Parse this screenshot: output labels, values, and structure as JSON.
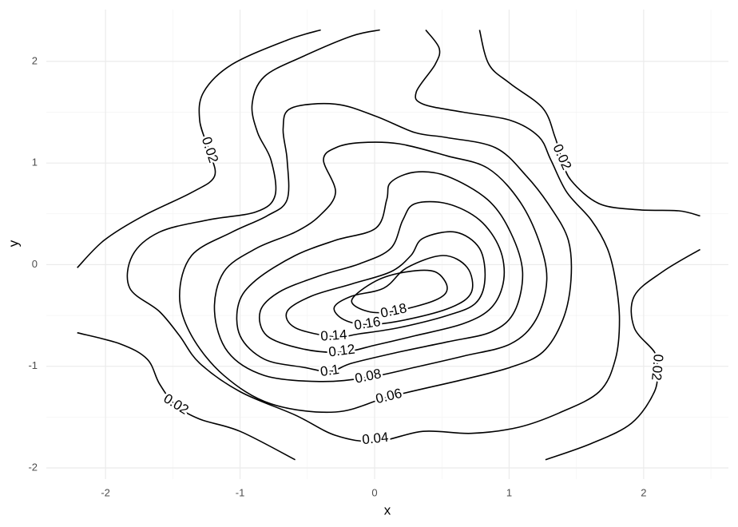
{
  "chart_data": {
    "type": "contour",
    "xlabel": "x",
    "ylabel": "y",
    "xlim": [
      -2.44,
      2.63
    ],
    "ylim": [
      -2.11,
      2.51
    ],
    "xticks": [
      -2,
      -1,
      0,
      1,
      2
    ],
    "yticks": [
      -2,
      -1,
      0,
      1,
      2
    ],
    "xminor": [
      -1.5,
      -0.5,
      0.5,
      1.5,
      2.5
    ],
    "yminor": [
      -1.5,
      -0.5,
      0.5,
      1.5
    ],
    "grid": true,
    "color": "#000000",
    "contours": [
      {
        "level": 0.02,
        "lines": [
          {
            "closed": false,
            "x": [
              -0.4,
              -0.65,
              -1.06,
              -1.27,
              -1.3,
              -1.23,
              -1.19,
              -1.36,
              -1.72,
              -2.01,
              -2.21
            ],
            "y": [
              2.31,
              2.21,
              1.97,
              1.7,
              1.42,
              1.12,
              0.87,
              0.71,
              0.48,
              0.24,
              -0.03
            ]
          },
          {
            "closed": false,
            "x": [
              -2.21,
              -1.89,
              -1.69,
              -1.6,
              -1.48,
              -1.3,
              -1.0,
              -0.59
            ],
            "y": [
              -0.67,
              -0.78,
              -0.93,
              -1.17,
              -1.38,
              -1.52,
              -1.64,
              -1.92
            ]
          },
          {
            "closed": false,
            "x": [
              0.78,
              0.85,
              1.01,
              1.25,
              1.34,
              1.39,
              1.46,
              1.67,
              1.96,
              2.26,
              2.42
            ],
            "y": [
              2.31,
              1.97,
              1.78,
              1.54,
              1.26,
              1.05,
              0.83,
              0.6,
              0.54,
              0.53,
              0.48
            ]
          },
          {
            "closed": false,
            "x": [
              2.42,
              2.14,
              1.93,
              1.93,
              2.08,
              2.1,
              2.08,
              1.91,
              1.61,
              1.27
            ],
            "y": [
              0.15,
              -0.07,
              -0.31,
              -0.62,
              -0.86,
              -1.01,
              -1.25,
              -1.56,
              -1.76,
              -1.92
            ]
          }
        ]
      },
      {
        "level": 0.04,
        "lines": [
          {
            "closed": false,
            "x": [
              0.04,
              -0.17,
              -0.53,
              -0.82,
              -0.91,
              -0.87,
              -0.77,
              -0.74,
              -0.88,
              -1.24,
              -1.6,
              -1.8,
              -1.82,
              -1.6,
              -1.45,
              -1.3,
              -1.0,
              -0.59,
              -0.29,
              0.01,
              0.36,
              0.72,
              1.07,
              1.37,
              1.67,
              1.79,
              1.82,
              1.79,
              1.73,
              1.61,
              1.43,
              1.31,
              1.22,
              1.01,
              0.66,
              0.36,
              0.31,
              0.45,
              0.48,
              0.38
            ],
            "y": [
              2.31,
              2.25,
              2.05,
              1.85,
              1.58,
              1.3,
              1.03,
              0.68,
              0.52,
              0.44,
              0.32,
              0.09,
              -0.23,
              -0.46,
              -0.7,
              -0.97,
              -1.25,
              -1.48,
              -1.68,
              -1.74,
              -1.64,
              -1.66,
              -1.6,
              -1.46,
              -1.25,
              -0.93,
              -0.54,
              -0.15,
              0.16,
              0.44,
              0.71,
              1.03,
              1.26,
              1.42,
              1.5,
              1.58,
              1.7,
              1.97,
              2.13,
              2.31
            ]
          }
        ]
      },
      {
        "level": 0.06,
        "lines": [
          {
            "closed": true,
            "x": [
              -0.62,
              -0.29,
              0.01,
              0.3,
              0.54,
              0.9,
              1.13,
              1.31,
              1.44,
              1.46,
              1.4,
              1.25,
              1.01,
              0.66,
              0.11,
              -0.29,
              -0.77,
              -1.12,
              -1.36,
              -1.45,
              -1.36,
              -1.06,
              -0.8,
              -0.65,
              -0.65,
              -0.68
            ],
            "y": [
              1.54,
              1.58,
              1.46,
              1.3,
              1.25,
              1.15,
              0.87,
              0.56,
              0.24,
              -0.15,
              -0.54,
              -0.86,
              -1.01,
              -1.13,
              -1.3,
              -1.45,
              -1.37,
              -1.09,
              -0.7,
              -0.31,
              0.09,
              0.32,
              0.48,
              0.64,
              1.03,
              1.34
            ]
          }
        ]
      },
      {
        "level": 0.08,
        "lines": [
          {
            "closed": true,
            "x": [
              -0.29,
              -0.11,
              0.18,
              0.54,
              0.84,
              1.07,
              1.22,
              1.28,
              1.2,
              1.01,
              0.66,
              0.3,
              -0.05,
              -0.41,
              -0.82,
              -1.09,
              -1.19,
              -1.12,
              -0.88,
              -0.59,
              -0.41,
              -0.29,
              -0.38
            ],
            "y": [
              1.15,
              1.2,
              1.19,
              1.07,
              0.95,
              0.64,
              0.24,
              -0.15,
              -0.54,
              -0.78,
              -0.9,
              -1.01,
              -1.11,
              -1.15,
              -1.09,
              -0.86,
              -0.46,
              -0.07,
              0.16,
              0.32,
              0.48,
              0.71,
              1.03
            ]
          }
        ]
      },
      {
        "level": 0.1,
        "lines": [
          {
            "closed": true,
            "x": [
              0.12,
              0.3,
              0.54,
              0.84,
              1.01,
              1.1,
              1.04,
              0.87,
              0.54,
              0.18,
              -0.17,
              -0.33,
              -0.53,
              -0.82,
              -1.0,
              -1.01,
              -0.88,
              -0.59,
              -0.29,
              0.01,
              0.09
            ],
            "y": [
              0.81,
              0.91,
              0.87,
              0.64,
              0.32,
              -0.07,
              -0.46,
              -0.66,
              -0.76,
              -0.86,
              -0.97,
              -1.05,
              -1.01,
              -0.93,
              -0.7,
              -0.38,
              -0.15,
              0.09,
              0.24,
              0.36,
              0.64
            ]
          }
        ]
      },
      {
        "level": 0.12,
        "lines": [
          {
            "closed": true,
            "x": [
              0.3,
              0.54,
              0.78,
              0.93,
              0.96,
              0.87,
              0.66,
              0.3,
              0.01,
              -0.24,
              -0.53,
              -0.8,
              -0.85,
              -0.71,
              -0.41,
              -0.11,
              0.12,
              0.21
            ],
            "y": [
              0.6,
              0.6,
              0.44,
              0.16,
              -0.15,
              -0.42,
              -0.58,
              -0.7,
              -0.79,
              -0.86,
              -0.83,
              -0.7,
              -0.46,
              -0.27,
              -0.11,
              0.01,
              0.16,
              0.44
            ]
          }
        ]
      },
      {
        "level": 0.14,
        "lines": [
          {
            "closed": true,
            "x": [
              0.36,
              0.6,
              0.78,
              0.82,
              0.75,
              0.54,
              0.18,
              -0.11,
              -0.3,
              -0.59,
              -0.65,
              -0.47,
              -0.17,
              0.12,
              0.27
            ],
            "y": [
              0.26,
              0.32,
              0.16,
              -0.15,
              -0.38,
              -0.5,
              -0.62,
              -0.68,
              -0.71,
              -0.62,
              -0.46,
              -0.31,
              -0.19,
              -0.07,
              0.09
            ]
          }
        ]
      },
      {
        "level": 0.16,
        "lines": [
          {
            "closed": true,
            "x": [
              0.24,
              0.51,
              0.69,
              0.72,
              0.57,
              0.24,
              -0.05,
              -0.23,
              -0.3,
              -0.17,
              0.07
            ],
            "y": [
              -0.03,
              0.09,
              -0.03,
              -0.27,
              -0.42,
              -0.54,
              -0.59,
              -0.54,
              -0.42,
              -0.31,
              -0.23
            ]
          }
        ]
      },
      {
        "level": 0.18,
        "lines": [
          {
            "closed": true,
            "x": [
              -0.17,
              0.01,
              0.24,
              0.45,
              0.54,
              0.45,
              0.14,
              -0.05
            ],
            "y": [
              -0.35,
              -0.16,
              -0.07,
              -0.07,
              -0.23,
              -0.35,
              -0.46,
              -0.46
            ]
          }
        ]
      }
    ]
  }
}
